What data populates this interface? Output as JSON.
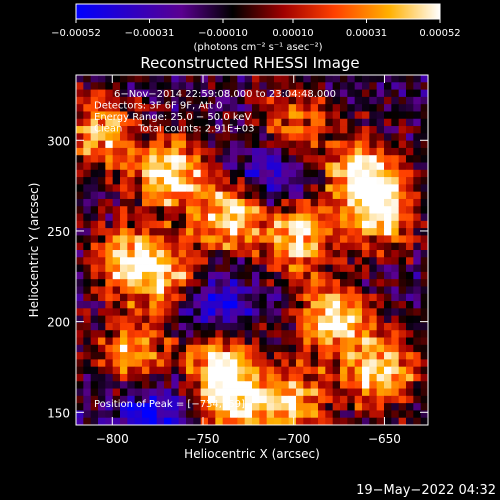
{
  "chart_data": {
    "type": "heatmap",
    "title": "Reconstructed RHESSI Image",
    "xlabel": "Heliocentric X (arcsec)",
    "ylabel": "Heliocentric Y (arcsec)",
    "xlim": [
      -820,
      -626
    ],
    "ylim": [
      143,
      336
    ],
    "x_ticks": [
      -800,
      -750,
      -700,
      -650
    ],
    "y_ticks": [
      150,
      200,
      250,
      300
    ],
    "x_tick_labels": [
      "−800",
      "−750",
      "−700",
      "−650"
    ],
    "y_tick_labels": [
      "150",
      "200",
      "250",
      "300"
    ],
    "colorbar": {
      "min": -0.00052,
      "max": 0.00052,
      "ticks": [
        -0.00052,
        -0.00031,
        -0.0001,
        0.0001,
        0.00031,
        0.00052
      ],
      "tick_labels": [
        "−0.00052",
        "−0.00031",
        "−0.00010",
        "0.00010",
        "0.00031",
        "0.00052"
      ],
      "label": "(photons cm⁻² s⁻¹ asec⁻²)",
      "colormap": [
        "#0000ff",
        "#2a00c8",
        "#5a0090",
        "#000000",
        "#a00000",
        "#ff4000",
        "#ffb000",
        "#ffffff"
      ]
    },
    "annotations": [
      "6−Nov−2014 22:59:08.000 to 23:04:48.000",
      "Detectors: 3F 6F 9F, Att 0",
      "Energy Range: 25.0 − 50.0 keV",
      "Clean     Total counts: 2.91E+03"
    ],
    "peak_label": "Position of Peak = [−734,159]",
    "peak": [
      -734,
      159
    ],
    "bright_regions": [
      {
        "x": -768,
        "y": 282,
        "value": 0.00052
      },
      {
        "x": -735,
        "y": 258,
        "value": 0.0005
      },
      {
        "x": -697,
        "y": 247,
        "value": 0.00048
      },
      {
        "x": -651,
        "y": 261,
        "value": 0.0005
      },
      {
        "x": -663,
        "y": 283,
        "value": 0.00045
      },
      {
        "x": -790,
        "y": 234,
        "value": 0.00047
      },
      {
        "x": -766,
        "y": 221,
        "value": 0.0004
      },
      {
        "x": -787,
        "y": 181,
        "value": 0.00043
      },
      {
        "x": -744,
        "y": 181,
        "value": 0.00042
      },
      {
        "x": -678,
        "y": 201,
        "value": 0.0005
      },
      {
        "x": -653,
        "y": 172,
        "value": 0.00048
      },
      {
        "x": -701,
        "y": 154,
        "value": 0.00043
      },
      {
        "x": -734,
        "y": 159,
        "value": 0.00052
      },
      {
        "x": -807,
        "y": 304,
        "value": 0.00042
      },
      {
        "x": -701,
        "y": 308,
        "value": 0.00035
      }
    ],
    "dim_regions": [
      {
        "x": -748,
        "y": 207,
        "value": -0.00045
      },
      {
        "x": -778,
        "y": 152,
        "value": -0.00038
      },
      {
        "x": -713,
        "y": 282,
        "value": -0.00032
      }
    ]
  },
  "footer": {
    "timestamp": "19−May−2022 04:32"
  },
  "colors": {
    "background": "#000000",
    "text": "#ffffff"
  }
}
